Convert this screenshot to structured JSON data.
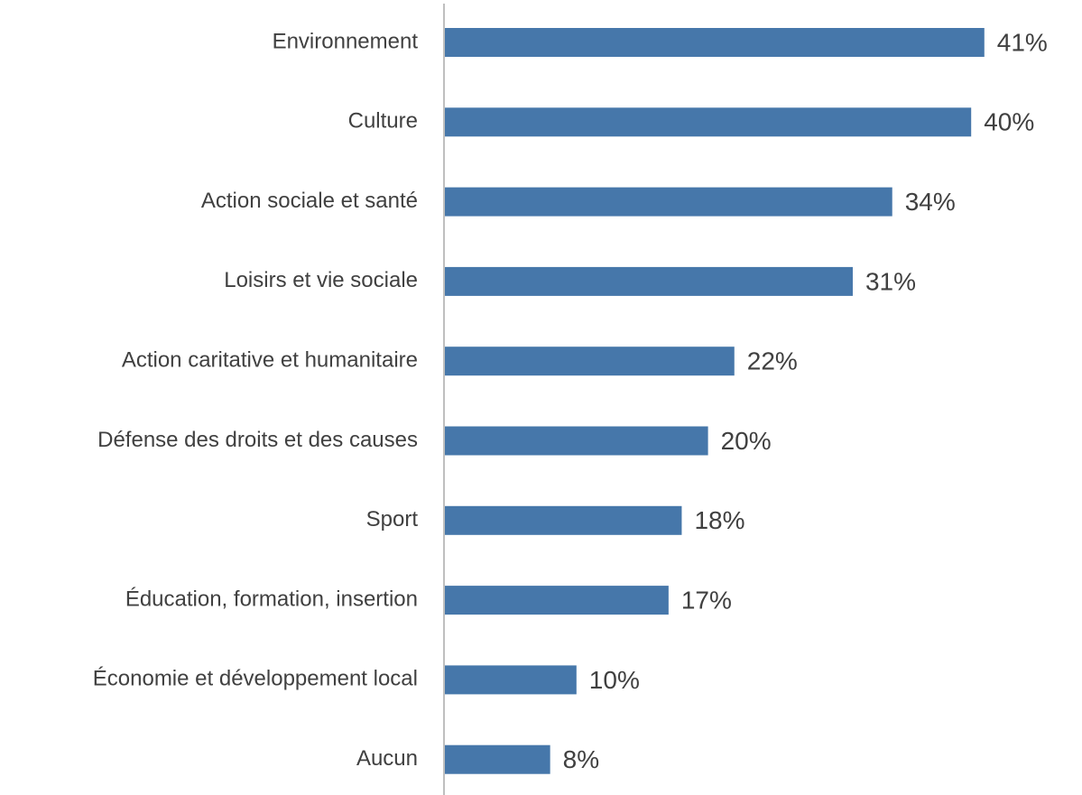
{
  "chart_data": {
    "type": "bar",
    "orientation": "horizontal",
    "categories": [
      "Environnement",
      "Culture",
      "Action sociale et santé",
      "Loisirs et vie sociale",
      "Action caritative et humanitaire",
      "Défense des droits et des causes",
      "Sport",
      "Éducation, formation, insertion",
      "Économie et développement local",
      "Aucun"
    ],
    "values": [
      41,
      40,
      34,
      31,
      22,
      20,
      18,
      17,
      10,
      8
    ],
    "value_labels": [
      "41%",
      "40%",
      "34%",
      "31%",
      "22%",
      "20%",
      "18%",
      "17%",
      "10%",
      "8%"
    ],
    "color": "#4677aa"
  }
}
